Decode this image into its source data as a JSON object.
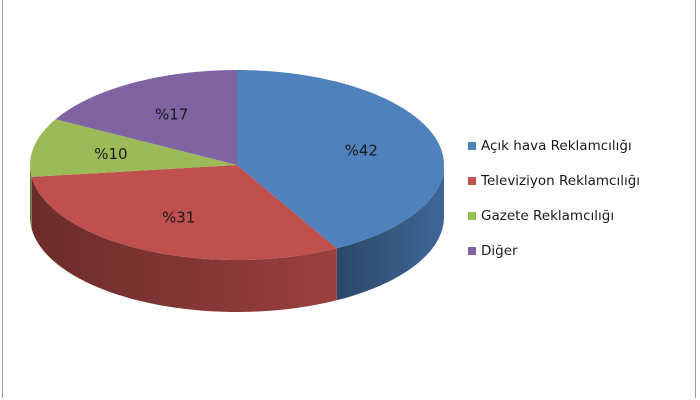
{
  "chart_data": {
    "type": "pie",
    "three_d": true,
    "legend_position": "right",
    "slices": [
      {
        "label": "Açık hava Reklamcılığı",
        "value": 42,
        "value_label": "%42",
        "color": "#4f81bd"
      },
      {
        "label": "Televiziyon Reklamcılığı",
        "value": 31,
        "value_label": "%31",
        "color": "#c0504d"
      },
      {
        "label": "Gazete Reklamcılığı",
        "value": 10,
        "value_label": "%10",
        "color": "#9bbb59"
      },
      {
        "label": "Diğer",
        "value": 17,
        "value_label": "%17",
        "color": "#8064a2"
      }
    ]
  }
}
